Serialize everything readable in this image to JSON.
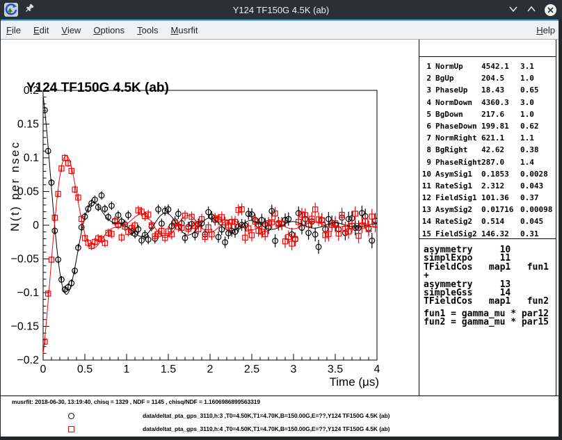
{
  "window": {
    "title": "Y124 TF150G 4.5K (ab)",
    "controls": {
      "shade": "chevron-down",
      "keep_above": "chevron-up",
      "close": "x"
    }
  },
  "menu": {
    "items": [
      {
        "label": "File"
      },
      {
        "label": "Edit"
      },
      {
        "label": "View"
      },
      {
        "label": "Options"
      },
      {
        "label": "Tools"
      },
      {
        "label": "Musrfit"
      }
    ],
    "help": "Help"
  },
  "plot": {
    "title": "Y124 TF150G 4.5K (ab)"
  },
  "chart_data": {
    "type": "scatter",
    "title": "Y124 TF150G 4.5K (ab)",
    "xlabel": "Time (μs)",
    "ylabel": "N(t) per nsec",
    "xlim": [
      0,
      4
    ],
    "ylim": [
      -0.2,
      0.2
    ],
    "grid": false,
    "legend_position": "bottom-pad",
    "xticks": [
      {
        "v": 0,
        "label": "0"
      },
      {
        "v": 0.5,
        "label": "0.5"
      },
      {
        "v": 1,
        "label": "1"
      },
      {
        "v": 1.5,
        "label": "1.5"
      },
      {
        "v": 2,
        "label": "2"
      },
      {
        "v": 2.5,
        "label": "2.5"
      },
      {
        "v": 3,
        "label": "3"
      },
      {
        "v": 3.5,
        "label": "3.5"
      },
      {
        "v": 4,
        "label": "4"
      }
    ],
    "yticks": [
      {
        "v": 0.2,
        "label": "0.2"
      },
      {
        "v": 0.15,
        "label": "0.15"
      },
      {
        "v": 0.1,
        "label": "0.1"
      },
      {
        "v": 0.05,
        "label": "0.05"
      },
      {
        "v": 0,
        "label": "0"
      },
      {
        "v": -0.05,
        "label": "−0.05"
      },
      {
        "v": -0.1,
        "label": "−0.1"
      },
      {
        "v": -0.15,
        "label": "−0.15"
      },
      {
        "v": -0.2,
        "label": "−0.2"
      }
    ],
    "x_minor_step": 0.1,
    "y_minor_step": 0.01,
    "series": [
      {
        "name": "data/deltat_pta_gps_3110,h:3 ,T0=4.50K,T1=4.70K,B=150.00G,E=??,Y124 TF150G 4.5K (ab)",
        "marker": "open-circle",
        "color": "#000000",
        "model": {
          "asym1": 0.1853,
          "rate1": 2.312,
          "freq1_MHz": 1.3738,
          "asym2": 0.01716,
          "rate2": 0.514,
          "freq2_MHz": 1.9832,
          "phase_deg": 18.43
        }
      },
      {
        "name": "data/deltat_pta_gps_3110,h:4 ,T0=4.50K,T1=4.70K,B=150.00G,E=??,Y124 TF150G 4.5K (ab)",
        "marker": "open-square",
        "color": "#ff0000",
        "model": {
          "asym1": 0.1853,
          "rate1": 2.312,
          "freq1_MHz": 1.3738,
          "asym2": 0.01716,
          "rate2": 0.514,
          "freq2_MHz": 1.9832,
          "phase_deg": 199.81
        }
      }
    ],
    "sampling": {
      "t_start": 0.02,
      "dt": 0.04,
      "n": 100,
      "seed": 20180630,
      "noise_base": 0.0065,
      "noise_slope": 0.0022,
      "err_base": 0.005,
      "err_slope": 0.0016
    }
  },
  "stats_panel": {
    "rows": [
      [
        "1",
        "NormUp",
        "4542.1",
        "3.1"
      ],
      [
        "2",
        "BgUp",
        "204.5",
        "1.0"
      ],
      [
        "3",
        "PhaseUp",
        "18.43",
        "0.65"
      ],
      [
        "4",
        "NormDown",
        "4360.3",
        "3.0"
      ],
      [
        "5",
        "BgDown",
        "217.6",
        "1.0"
      ],
      [
        "6",
        "PhaseDown",
        "199.81",
        "0.62"
      ],
      [
        "7",
        "NormRight",
        "621.1",
        "1.1"
      ],
      [
        "8",
        "BgRight",
        "42.62",
        "0.38"
      ],
      [
        "9",
        "PhaseRight",
        "287.0",
        "1.4"
      ],
      [
        "10",
        "AsymSig1",
        "0.1853",
        "0.0028"
      ],
      [
        "11",
        "RateSig1",
        "2.312",
        "0.043"
      ],
      [
        "12",
        "FieldSig1",
        "101.36",
        "0.37"
      ],
      [
        "13",
        "AsymSig2",
        "0.01716",
        "0.00098"
      ],
      [
        "14",
        "RateSig2",
        "0.514",
        "0.045"
      ],
      [
        "15",
        "FieldSig2",
        "146.32",
        "0.31"
      ]
    ]
  },
  "theory_panel": {
    "lines": [
      "asymmetry     10",
      "simplExpo     11",
      "TFieldCos   map1   fun1",
      "+",
      "asymmetry     13",
      "simpleGss     14",
      "TFieldCos   map1   fun2"
    ],
    "fun_lines": [
      "fun1 = gamma_mu * par12",
      "fun2 = gamma_mu * par15"
    ]
  },
  "footer": {
    "info": "musrfit: 2018-06-30, 13:19:40, chisq = 1329 , NDF = 1145 , chisq/NDF = 1.1606986899563319",
    "legend": [
      {
        "marker": "circle",
        "color": "#000000",
        "label": "data/deltat_pta_gps_3110,h:3 ,T0=4.50K,T1=4.70K,B=150.00G,E=??,Y124 TF150G 4.5K (ab)"
      },
      {
        "marker": "square",
        "color": "#ff0000",
        "label": "data/deltat_pta_gps_3110,h:4 ,T0=4.50K,T1=4.70K,B=150.00G,E=??,Y124 TF150G 4.5K (ab)"
      }
    ]
  }
}
